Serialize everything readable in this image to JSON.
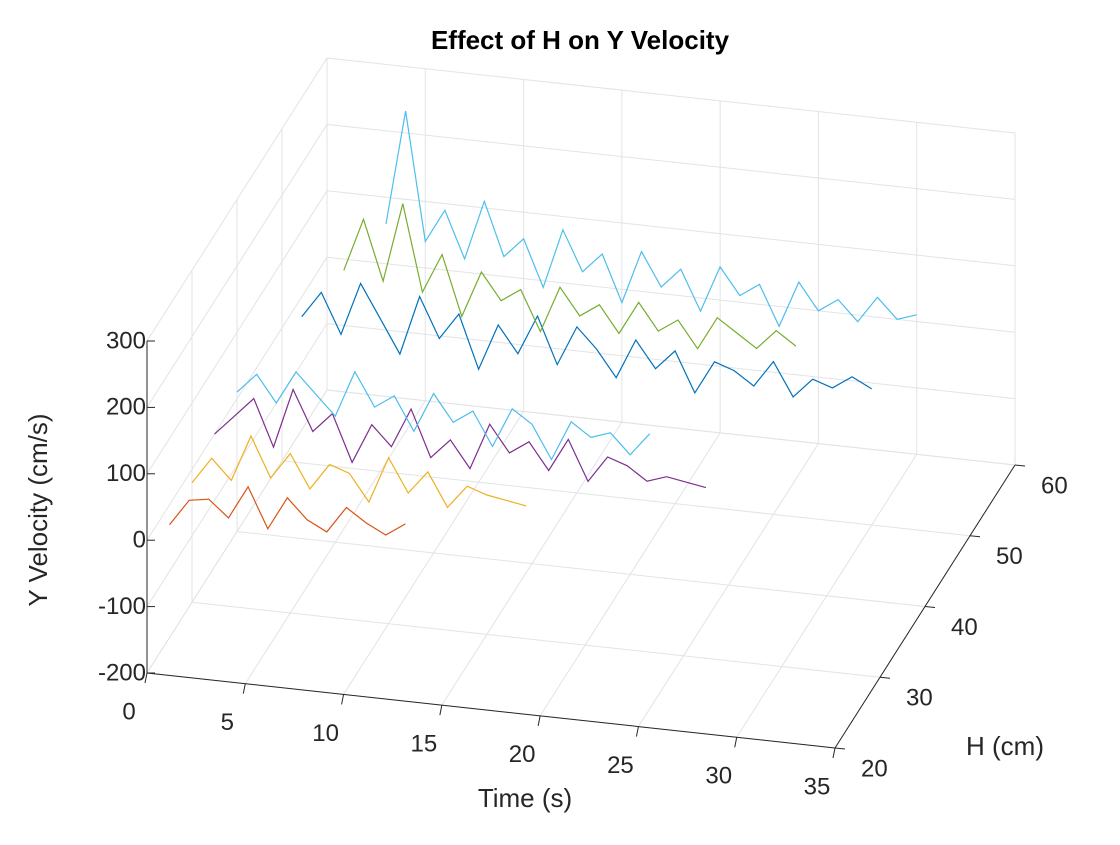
{
  "chart_data": {
    "type": "line3d",
    "title": "Effect of H on  Y Velocity",
    "xlabel": "Time (s)",
    "ylabel": "H (cm)",
    "zlabel": "Y Velocity (cm/s)",
    "xlim": [
      0,
      35
    ],
    "ylim": [
      20,
      60
    ],
    "zlim": [
      -200,
      300
    ],
    "xticks": [
      0,
      5,
      10,
      15,
      20,
      25,
      30,
      35
    ],
    "yticks": [
      20,
      30,
      40,
      50,
      60
    ],
    "zticks": [
      -200,
      -100,
      0,
      100,
      200,
      300
    ],
    "grid": true,
    "x": [
      0,
      1,
      2,
      3,
      4,
      5,
      6,
      7,
      8,
      9,
      10,
      11,
      12,
      13,
      14,
      15,
      16,
      17,
      18,
      19,
      20,
      21,
      22,
      23,
      24,
      25,
      26,
      27,
      28,
      29,
      30
    ],
    "series": [
      {
        "h": 25,
        "color": "#D95319",
        "values": [
          -30,
          10,
          15,
          -10,
          40,
          -20,
          30,
          0,
          -15,
          25,
          5,
          -10,
          10,
          null,
          null,
          null,
          null,
          null,
          null,
          null,
          null,
          null,
          null,
          null,
          null,
          null,
          null,
          null,
          null,
          null,
          null
        ]
      },
      {
        "h": 30,
        "color": "#EDB120",
        "values": [
          -20,
          20,
          -10,
          60,
          0,
          40,
          -10,
          30,
          20,
          -20,
          50,
          0,
          35,
          -15,
          20,
          10,
          5,
          0,
          null,
          null,
          null,
          null,
          null,
          null,
          null,
          null,
          null,
          null,
          null,
          null,
          null
        ]
      },
      {
        "h": 35,
        "color": "#7E2F8E",
        "values": [
          0,
          30,
          60,
          -10,
          80,
          20,
          50,
          -20,
          40,
          10,
          70,
          0,
          30,
          -10,
          60,
          20,
          40,
          0,
          50,
          -10,
          30,
          20,
          0,
          10,
          5,
          0,
          null,
          null,
          null,
          null,
          null
        ]
      },
      {
        "h": 40,
        "color": "#4DBEEE",
        "values": [
          10,
          40,
          0,
          50,
          20,
          -10,
          60,
          10,
          30,
          -20,
          40,
          0,
          20,
          -30,
          30,
          10,
          -40,
          20,
          0,
          10,
          -20,
          15,
          null,
          null,
          null,
          null,
          null,
          null,
          null,
          null,
          null
        ]
      },
      {
        "h": 50,
        "color": "#0072BD",
        "values": [
          null,
          20,
          60,
          0,
          80,
          30,
          -20,
          70,
          10,
          50,
          -30,
          40,
          0,
          60,
          -10,
          50,
          20,
          -20,
          40,
          0,
          30,
          -30,
          20,
          10,
          -10,
          30,
          -20,
          10,
          0,
          20,
          5
        ]
      },
      {
        "h": 55,
        "color": "#77AC30",
        "values": [
          null,
          null,
          40,
          120,
          30,
          150,
          20,
          80,
          -10,
          60,
          20,
          40,
          -20,
          50,
          10,
          30,
          -10,
          40,
          0,
          20,
          -20,
          30,
          10,
          -10,
          20,
          0,
          null,
          null,
          null,
          null,
          null
        ]
      },
      {
        "h": 60,
        "color": "#4DBEEE",
        "values": [
          null,
          null,
          null,
          60,
          233,
          40,
          90,
          20,
          110,
          30,
          60,
          -10,
          80,
          20,
          50,
          -20,
          60,
          10,
          40,
          -20,
          50,
          10,
          30,
          -30,
          40,
          0,
          20,
          -10,
          30,
          0,
          10
        ]
      }
    ]
  }
}
